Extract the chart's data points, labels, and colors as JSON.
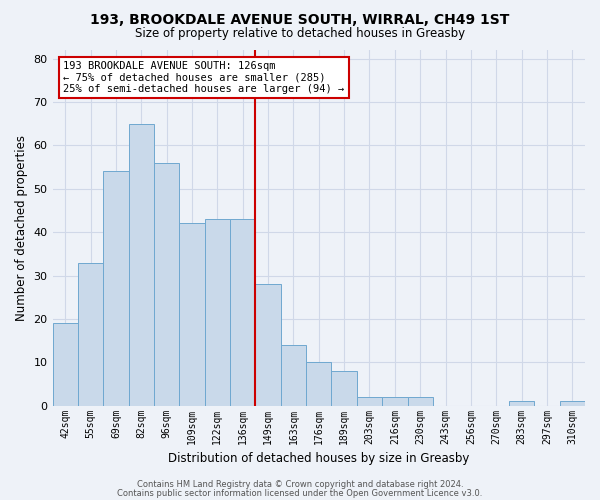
{
  "title1": "193, BROOKDALE AVENUE SOUTH, WIRRAL, CH49 1ST",
  "title2": "Size of property relative to detached houses in Greasby",
  "xlabel": "Distribution of detached houses by size in Greasby",
  "ylabel": "Number of detached properties",
  "bins": [
    "42sqm",
    "55sqm",
    "69sqm",
    "82sqm",
    "96sqm",
    "109sqm",
    "122sqm",
    "136sqm",
    "149sqm",
    "163sqm",
    "176sqm",
    "189sqm",
    "203sqm",
    "216sqm",
    "230sqm",
    "243sqm",
    "256sqm",
    "270sqm",
    "283sqm",
    "297sqm",
    "310sqm"
  ],
  "bar_heights": [
    19,
    33,
    54,
    65,
    56,
    42,
    43,
    43,
    28,
    14,
    10,
    8,
    2,
    2,
    2,
    0,
    0,
    0,
    1,
    0,
    1
  ],
  "bar_color": "#c9d9ea",
  "bar_edge_color": "#6fa8d0",
  "grid_color": "#d0d8e8",
  "background_color": "#eef2f8",
  "vline_x": 7.5,
  "vline_color": "#cc0000",
  "annotation_line1": "193 BROOKDALE AVENUE SOUTH: 126sqm",
  "annotation_line2": "← 75% of detached houses are smaller (285)",
  "annotation_line3": "25% of semi-detached houses are larger (94) →",
  "annotation_box_color": "#ffffff",
  "annotation_box_edge": "#cc0000",
  "footer1": "Contains HM Land Registry data © Crown copyright and database right 2024.",
  "footer2": "Contains public sector information licensed under the Open Government Licence v3.0.",
  "ylim": [
    0,
    82
  ],
  "yticks": [
    0,
    10,
    20,
    30,
    40,
    50,
    60,
    70,
    80
  ]
}
